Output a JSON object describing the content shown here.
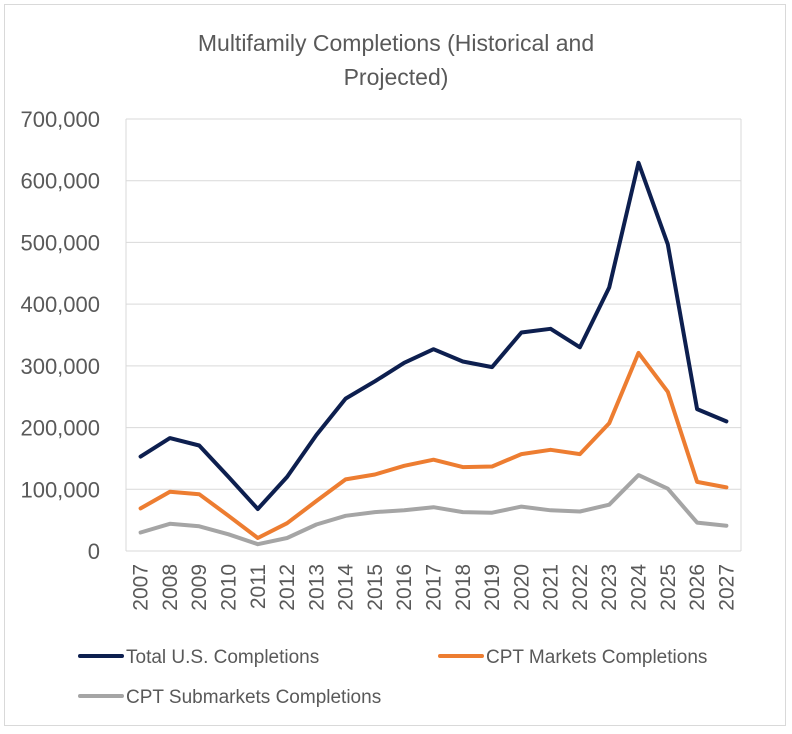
{
  "chart_data": {
    "type": "line",
    "title_lines": [
      "Multifamily Completions (Historical and",
      "Projected)"
    ],
    "x": [
      "2007",
      "2008",
      "2009",
      "2010",
      "2011",
      "2012",
      "2013",
      "2014",
      "2015",
      "2016",
      "2017",
      "2018",
      "2019",
      "2020",
      "2021",
      "2022",
      "2023",
      "2024",
      "2025",
      "2026",
      "2027"
    ],
    "ylim": [
      0,
      700000
    ],
    "yticks": [
      0,
      100000,
      200000,
      300000,
      400000,
      500000,
      600000,
      700000
    ],
    "ytick_labels": [
      "0",
      "100,000",
      "200,000",
      "300,000",
      "400,000",
      "500,000",
      "600,000",
      "700,000"
    ],
    "grid": true,
    "legend_position": "bottom",
    "series": [
      {
        "name": "Total U.S. Completions",
        "color": "#0d1f4f",
        "values": [
          153000,
          183000,
          171000,
          120000,
          68000,
          120000,
          188000,
          247000,
          275000,
          305000,
          327000,
          307000,
          298000,
          354000,
          360000,
          330000,
          427000,
          629000,
          497000,
          230000,
          210000
        ]
      },
      {
        "name": "CPT Markets Completions",
        "color": "#ed7d31",
        "values": [
          69000,
          96000,
          92000,
          57000,
          21000,
          45000,
          81000,
          116000,
          124000,
          138000,
          148000,
          136000,
          137000,
          157000,
          164000,
          157000,
          207000,
          321000,
          258000,
          112000,
          103000
        ]
      },
      {
        "name": "CPT Submarkets Completions",
        "color": "#a5a5a5",
        "values": [
          30000,
          44000,
          40000,
          27000,
          11000,
          21000,
          43000,
          57000,
          63000,
          66000,
          71000,
          63000,
          62000,
          72000,
          66000,
          64000,
          75000,
          123000,
          101000,
          46000,
          41000
        ]
      }
    ]
  }
}
